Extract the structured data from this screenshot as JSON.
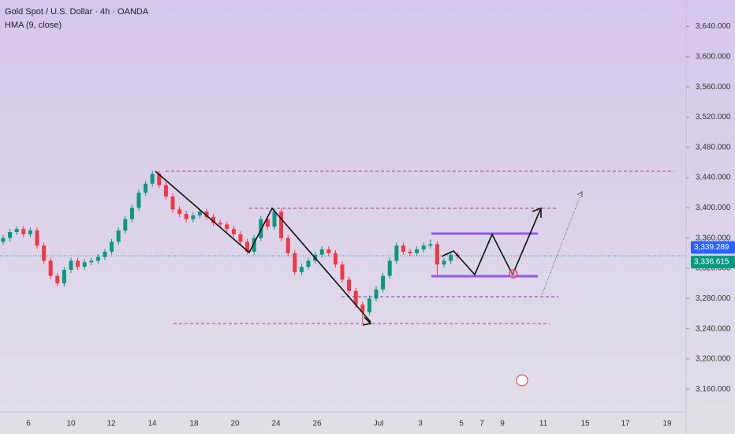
{
  "chart_data": {
    "type": "candlestick",
    "title": "Gold Spot / U.S. Dollar · 4h · OANDA",
    "subtitle": "HMA (9, close)",
    "x_labels": [
      "6",
      "10",
      "12",
      "14",
      "18",
      "20",
      "24",
      "26",
      "Jul",
      "3",
      "5",
      "7",
      "9",
      "11",
      "15",
      "17",
      "19"
    ],
    "open": [
      3355,
      3360,
      3368,
      3372,
      3365,
      3370,
      3350,
      3330,
      3310,
      3300,
      3318,
      3330,
      3322,
      3328,
      3330,
      3335,
      3342,
      3355,
      3370,
      3385,
      3400,
      3420,
      3432,
      3445,
      3430,
      3415,
      3398,
      3392,
      3385,
      3390,
      3395,
      3388,
      3380,
      3378,
      3372,
      3365,
      3355,
      3342,
      3360,
      3385,
      3375,
      3395,
      3360,
      3340,
      3315,
      3322,
      3330,
      3338,
      3345,
      3340,
      3325,
      3305,
      3290,
      3272,
      3262,
      3280,
      3292,
      3310,
      3330,
      3350,
      3342,
      3340,
      3345,
      3350,
      3352,
      3325,
      3330,
      3338
    ],
    "high": [
      3364,
      3372,
      3376,
      3376,
      3374,
      3374,
      3354,
      3334,
      3314,
      3322,
      3334,
      3334,
      3332,
      3334,
      3339,
      3346,
      3359,
      3374,
      3389,
      3404,
      3424,
      3436,
      3449,
      3449,
      3434,
      3419,
      3402,
      3396,
      3394,
      3399,
      3399,
      3392,
      3384,
      3382,
      3376,
      3369,
      3359,
      3364,
      3389,
      3389,
      3399,
      3399,
      3364,
      3344,
      3326,
      3334,
      3342,
      3349,
      3349,
      3344,
      3329,
      3309,
      3294,
      3276,
      3284,
      3296,
      3314,
      3334,
      3354,
      3354,
      3346,
      3349,
      3354,
      3358,
      3356,
      3334,
      3342,
      3342
    ],
    "low": [
      3351,
      3356,
      3364,
      3361,
      3361,
      3346,
      3326,
      3306,
      3296,
      3296,
      3314,
      3318,
      3318,
      3324,
      3326,
      3331,
      3338,
      3351,
      3366,
      3381,
      3396,
      3416,
      3428,
      3426,
      3411,
      3394,
      3388,
      3381,
      3381,
      3386,
      3384,
      3376,
      3374,
      3368,
      3361,
      3351,
      3338,
      3338,
      3356,
      3371,
      3371,
      3356,
      3336,
      3311,
      3311,
      3318,
      3326,
      3334,
      3336,
      3321,
      3301,
      3286,
      3268,
      3248,
      3258,
      3276,
      3288,
      3306,
      3326,
      3338,
      3336,
      3336,
      3341,
      3346,
      3310,
      3321,
      3326,
      3332
    ],
    "close": [
      3360,
      3368,
      3372,
      3365,
      3370,
      3350,
      3330,
      3310,
      3300,
      3318,
      3330,
      3322,
      3328,
      3330,
      3335,
      3342,
      3355,
      3370,
      3385,
      3400,
      3420,
      3432,
      3445,
      3430,
      3415,
      3398,
      3392,
      3385,
      3390,
      3395,
      3388,
      3380,
      3378,
      3372,
      3365,
      3355,
      3342,
      3360,
      3385,
      3375,
      3395,
      3360,
      3340,
      3315,
      3322,
      3330,
      3338,
      3345,
      3340,
      3325,
      3305,
      3290,
      3272,
      3262,
      3280,
      3292,
      3310,
      3330,
      3350,
      3342,
      3340,
      3345,
      3350,
      3352,
      3325,
      3330,
      3338,
      3336
    ],
    "up_color": "#089981",
    "down_color": "#f23645",
    "ylim": [
      3130,
      3675
    ],
    "yticks": [
      {
        "value": 3640,
        "label": "3,640.000"
      },
      {
        "value": 3600,
        "label": "3,600.000"
      },
      {
        "value": 3560,
        "label": "3,560.000"
      },
      {
        "value": 3520,
        "label": "3,520.000"
      },
      {
        "value": 3480,
        "label": "3,480.000"
      },
      {
        "value": 3440,
        "label": "3,440.000"
      },
      {
        "value": 3400,
        "label": "3,400.000"
      },
      {
        "value": 3360,
        "label": "3,360.000"
      },
      {
        "value": 3320,
        "label": "3,320.000"
      },
      {
        "value": 3280,
        "label": "3,280.000"
      },
      {
        "value": 3240,
        "label": "3,240.000"
      },
      {
        "value": 3200,
        "label": "3,200.000"
      },
      {
        "value": 3160,
        "label": "3,160.000"
      }
    ],
    "price_markers": [
      {
        "value": 3339.289,
        "label": "3,339.289",
        "color": "#2962ff"
      },
      {
        "value": 3336.615,
        "label": "3,336.615",
        "color": "#089981"
      }
    ]
  }
}
